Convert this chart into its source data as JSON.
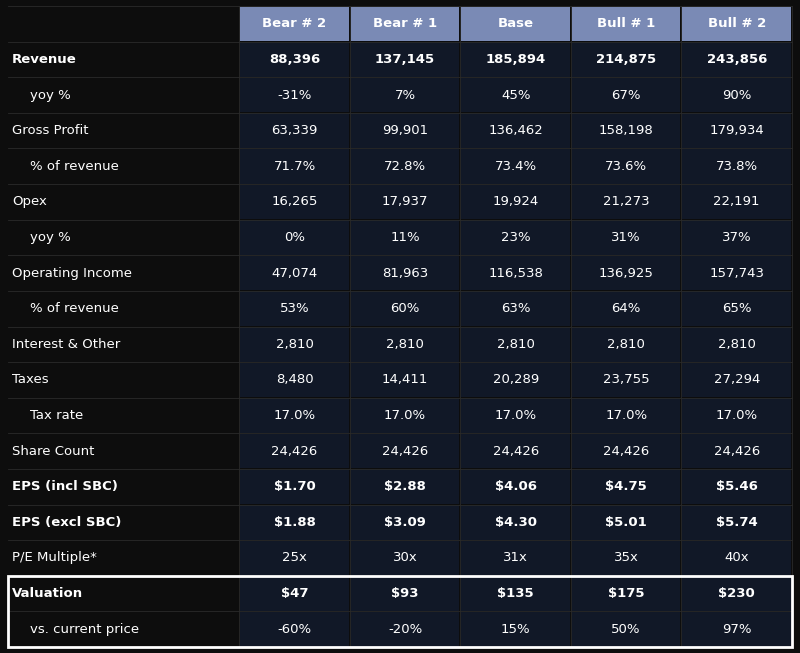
{
  "bg_color": "#0d0d0d",
  "header_bg": "#7a8ab5",
  "data_col_bg": "#111827",
  "valuation_row_bg": "#111827",
  "white": "#ffffff",
  "columns": [
    "Bear # 2",
    "Bear # 1",
    "Base",
    "Bull # 1",
    "Bull # 2"
  ],
  "rows": [
    {
      "label": "Revenue",
      "bold": true,
      "indent": false,
      "values": [
        "88,396",
        "137,145",
        "185,894",
        "214,875",
        "243,856"
      ],
      "val_bold": true
    },
    {
      "label": "yoy %",
      "bold": false,
      "indent": true,
      "values": [
        "-31%",
        "7%",
        "45%",
        "67%",
        "90%"
      ],
      "val_bold": false
    },
    {
      "label": "Gross Profit",
      "bold": false,
      "indent": false,
      "values": [
        "63,339",
        "99,901",
        "136,462",
        "158,198",
        "179,934"
      ],
      "val_bold": false
    },
    {
      "label": "% of revenue",
      "bold": false,
      "indent": true,
      "values": [
        "71.7%",
        "72.8%",
        "73.4%",
        "73.6%",
        "73.8%"
      ],
      "val_bold": false
    },
    {
      "label": "Opex",
      "bold": false,
      "indent": false,
      "values": [
        "16,265",
        "17,937",
        "19,924",
        "21,273",
        "22,191"
      ],
      "val_bold": false
    },
    {
      "label": "yoy %",
      "bold": false,
      "indent": true,
      "values": [
        "0%",
        "11%",
        "23%",
        "31%",
        "37%"
      ],
      "val_bold": false
    },
    {
      "label": "Operating Income",
      "bold": false,
      "indent": false,
      "values": [
        "47,074",
        "81,963",
        "116,538",
        "136,925",
        "157,743"
      ],
      "val_bold": false
    },
    {
      "label": "% of revenue",
      "bold": false,
      "indent": true,
      "values": [
        "53%",
        "60%",
        "63%",
        "64%",
        "65%"
      ],
      "val_bold": false
    },
    {
      "label": "Interest & Other",
      "bold": false,
      "indent": false,
      "values": [
        "2,810",
        "2,810",
        "2,810",
        "2,810",
        "2,810"
      ],
      "val_bold": false
    },
    {
      "label": "Taxes",
      "bold": false,
      "indent": false,
      "values": [
        "8,480",
        "14,411",
        "20,289",
        "23,755",
        "27,294"
      ],
      "val_bold": false
    },
    {
      "label": "Tax rate",
      "bold": false,
      "indent": true,
      "values": [
        "17.0%",
        "17.0%",
        "17.0%",
        "17.0%",
        "17.0%"
      ],
      "val_bold": false
    },
    {
      "label": "Share Count",
      "bold": false,
      "indent": false,
      "values": [
        "24,426",
        "24,426",
        "24,426",
        "24,426",
        "24,426"
      ],
      "val_bold": false
    },
    {
      "label": "EPS (incl SBC)",
      "bold": true,
      "indent": false,
      "values": [
        "$1.70",
        "$2.88",
        "$4.06",
        "$4.75",
        "$5.46"
      ],
      "val_bold": true
    },
    {
      "label": "EPS (excl SBC)",
      "bold": true,
      "indent": false,
      "values": [
        "$1.88",
        "$3.09",
        "$4.30",
        "$5.01",
        "$5.74"
      ],
      "val_bold": true
    },
    {
      "label": "P/E Multiple*",
      "bold": false,
      "indent": false,
      "values": [
        "25x",
        "30x",
        "31x",
        "35x",
        "40x"
      ],
      "val_bold": false
    },
    {
      "label": "Valuation",
      "bold": true,
      "indent": false,
      "values": [
        "$47",
        "$93",
        "$135",
        "$175",
        "$230"
      ],
      "val_bold": true,
      "valuation": true
    },
    {
      "label": "vs. current price",
      "bold": false,
      "indent": true,
      "values": [
        "-60%",
        "-20%",
        "15%",
        "50%",
        "97%"
      ],
      "val_bold": false,
      "valuation": true
    }
  ],
  "font_size": 9.5,
  "header_font_size": 9.5
}
